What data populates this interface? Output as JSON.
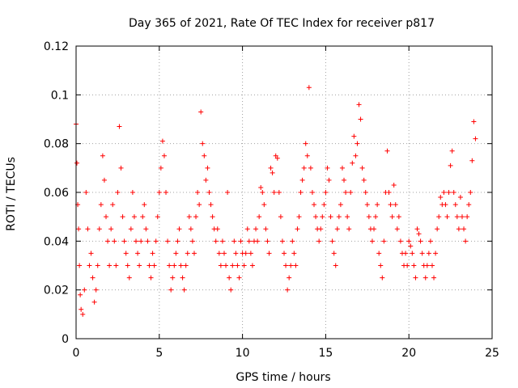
{
  "chart_data": {
    "type": "scatter",
    "title": "Day 365 of 2021, Rate Of TEC Index for receiver p817",
    "xlabel": "GPS time / hours",
    "ylabel": "ROTI / TECUs",
    "xlim": [
      0,
      25
    ],
    "ylim": [
      0,
      0.12
    ],
    "xticks": [
      0,
      5,
      10,
      15,
      20,
      25
    ],
    "xtick_labels": [
      "0",
      "5",
      "10",
      "15",
      "20",
      "25"
    ],
    "yticks": [
      0,
      0.02,
      0.04,
      0.06,
      0.08,
      0.1,
      0.12
    ],
    "ytick_labels": [
      "0",
      "0.02",
      "0.04",
      "0.06",
      "0.08",
      "0.1",
      "0.12"
    ],
    "grid": true,
    "marker": "plus",
    "series": [
      {
        "color": "#ff0000",
        "x": [
          0.0,
          0.05,
          0.1,
          0.15,
          0.2,
          0.25,
          0.3,
          0.4,
          0.5,
          0.6,
          0.7,
          0.8,
          0.9,
          1.0,
          1.1,
          1.2,
          1.3,
          1.4,
          1.5,
          1.6,
          1.7,
          1.8,
          1.9,
          2.0,
          2.1,
          2.2,
          2.3,
          2.4,
          2.5,
          2.6,
          2.7,
          2.8,
          2.9,
          3.0,
          3.1,
          3.2,
          3.3,
          3.4,
          3.5,
          3.6,
          3.7,
          3.8,
          3.9,
          4.0,
          4.1,
          4.2,
          4.3,
          4.4,
          4.5,
          4.6,
          4.7,
          4.8,
          4.9,
          5.0,
          5.1,
          5.2,
          5.3,
          5.4,
          5.5,
          5.6,
          5.7,
          5.8,
          5.9,
          6.0,
          6.1,
          6.2,
          6.3,
          6.4,
          6.5,
          6.6,
          6.7,
          6.8,
          6.9,
          7.0,
          7.1,
          7.2,
          7.3,
          7.4,
          7.5,
          7.6,
          7.7,
          7.8,
          7.9,
          8.0,
          8.1,
          8.2,
          8.3,
          8.4,
          8.5,
          8.6,
          8.7,
          8.8,
          8.9,
          9.0,
          9.1,
          9.2,
          9.3,
          9.4,
          9.5,
          9.6,
          9.7,
          9.8,
          9.9,
          10.0,
          10.1,
          10.2,
          10.3,
          10.4,
          10.5,
          10.6,
          10.7,
          10.8,
          10.9,
          11.0,
          11.1,
          11.2,
          11.3,
          11.4,
          11.5,
          11.6,
          11.7,
          11.8,
          11.9,
          12.0,
          12.1,
          12.2,
          12.3,
          12.4,
          12.5,
          12.6,
          12.7,
          12.8,
          12.9,
          13.0,
          13.1,
          13.2,
          13.3,
          13.4,
          13.5,
          13.6,
          13.7,
          13.8,
          13.9,
          14.0,
          14.1,
          14.2,
          14.3,
          14.4,
          14.5,
          14.6,
          14.7,
          14.8,
          14.9,
          15.0,
          15.1,
          15.2,
          15.3,
          15.4,
          15.5,
          15.6,
          15.7,
          15.8,
          15.9,
          16.0,
          16.1,
          16.2,
          16.3,
          16.4,
          16.5,
          16.6,
          16.7,
          16.8,
          16.9,
          17.0,
          17.1,
          17.2,
          17.3,
          17.4,
          17.5,
          17.6,
          17.7,
          17.8,
          17.9,
          18.0,
          18.1,
          18.2,
          18.3,
          18.4,
          18.5,
          18.6,
          18.7,
          18.8,
          18.9,
          19.0,
          19.1,
          19.2,
          19.3,
          19.4,
          19.5,
          19.6,
          19.7,
          19.8,
          19.9,
          20.0,
          20.1,
          20.2,
          20.3,
          20.4,
          20.5,
          20.6,
          20.7,
          20.8,
          20.9,
          21.0,
          21.1,
          21.2,
          21.3,
          21.4,
          21.5,
          21.6,
          21.7,
          21.8,
          21.9,
          22.0,
          22.1,
          22.2,
          22.3,
          22.4,
          22.5,
          22.6,
          22.7,
          22.8,
          22.9,
          23.0,
          23.1,
          23.2,
          23.3,
          23.4,
          23.5,
          23.6,
          23.7,
          23.8,
          23.9,
          24.0
        ],
        "y": [
          0.088,
          0.072,
          0.055,
          0.045,
          0.03,
          0.018,
          0.012,
          0.01,
          0.02,
          0.06,
          0.045,
          0.03,
          0.035,
          0.025,
          0.015,
          0.02,
          0.03,
          0.045,
          0.055,
          0.075,
          0.065,
          0.05,
          0.04,
          0.03,
          0.045,
          0.055,
          0.04,
          0.03,
          0.06,
          0.087,
          0.07,
          0.05,
          0.04,
          0.035,
          0.03,
          0.025,
          0.045,
          0.06,
          0.05,
          0.04,
          0.035,
          0.03,
          0.04,
          0.05,
          0.055,
          0.045,
          0.04,
          0.03,
          0.025,
          0.035,
          0.03,
          0.04,
          0.05,
          0.06,
          0.07,
          0.081,
          0.075,
          0.06,
          0.04,
          0.03,
          0.02,
          0.025,
          0.03,
          0.035,
          0.04,
          0.045,
          0.03,
          0.025,
          0.02,
          0.03,
          0.035,
          0.05,
          0.045,
          0.04,
          0.035,
          0.05,
          0.06,
          0.055,
          0.093,
          0.08,
          0.075,
          0.065,
          0.07,
          0.06,
          0.055,
          0.05,
          0.045,
          0.04,
          0.045,
          0.035,
          0.03,
          0.04,
          0.035,
          0.03,
          0.06,
          0.025,
          0.02,
          0.03,
          0.04,
          0.035,
          0.03,
          0.025,
          0.04,
          0.035,
          0.03,
          0.035,
          0.045,
          0.04,
          0.035,
          0.03,
          0.04,
          0.045,
          0.04,
          0.05,
          0.062,
          0.06,
          0.055,
          0.045,
          0.04,
          0.035,
          0.07,
          0.068,
          0.06,
          0.075,
          0.074,
          0.06,
          0.05,
          0.04,
          0.035,
          0.03,
          0.02,
          0.025,
          0.03,
          0.04,
          0.035,
          0.03,
          0.045,
          0.05,
          0.06,
          0.065,
          0.07,
          0.08,
          0.075,
          0.103,
          0.07,
          0.06,
          0.055,
          0.05,
          0.045,
          0.04,
          0.045,
          0.05,
          0.055,
          0.06,
          0.07,
          0.065,
          0.05,
          0.04,
          0.035,
          0.03,
          0.045,
          0.05,
          0.055,
          0.07,
          0.065,
          0.06,
          0.05,
          0.045,
          0.06,
          0.072,
          0.083,
          0.075,
          0.08,
          0.096,
          0.09,
          0.07,
          0.065,
          0.06,
          0.055,
          0.05,
          0.045,
          0.04,
          0.045,
          0.05,
          0.055,
          0.035,
          0.03,
          0.025,
          0.04,
          0.06,
          0.077,
          0.06,
          0.055,
          0.05,
          0.063,
          0.055,
          0.045,
          0.05,
          0.04,
          0.035,
          0.03,
          0.035,
          0.03,
          0.04,
          0.038,
          0.035,
          0.03,
          0.025,
          0.045,
          0.043,
          0.04,
          0.035,
          0.03,
          0.025,
          0.03,
          0.035,
          0.04,
          0.03,
          0.025,
          0.035,
          0.045,
          0.05,
          0.058,
          0.055,
          0.06,
          0.055,
          0.05,
          0.06,
          0.071,
          0.077,
          0.06,
          0.055,
          0.05,
          0.045,
          0.058,
          0.05,
          0.045,
          0.04,
          0.05,
          0.055,
          0.06,
          0.073,
          0.089,
          0.082
        ]
      }
    ]
  }
}
